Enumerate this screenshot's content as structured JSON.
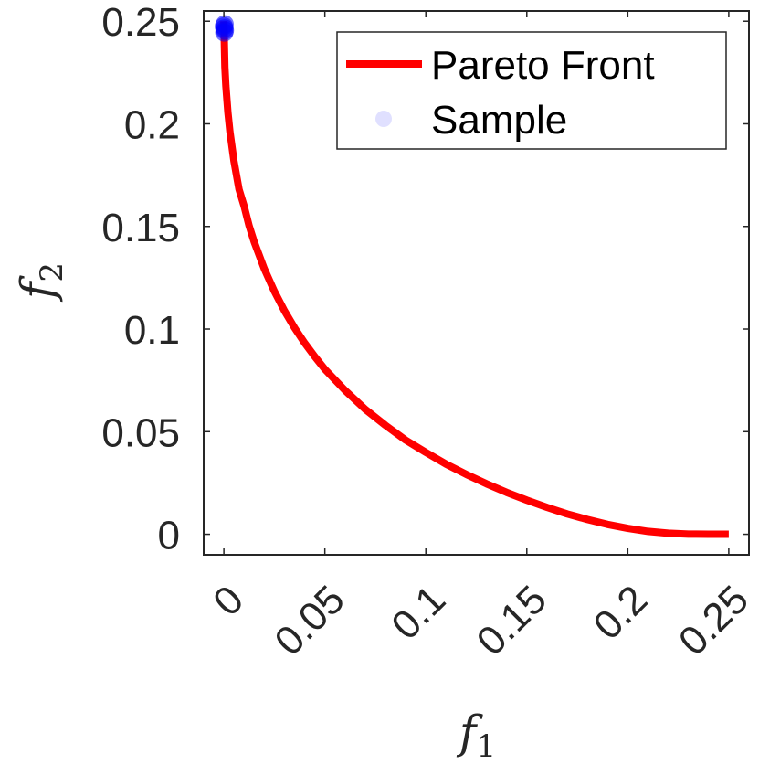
{
  "chart_data": {
    "type": "line",
    "title": "",
    "xlabel": "f",
    "xlabel_sub": "1",
    "ylabel": "f",
    "ylabel_sub": "2",
    "xlim": [
      -0.01,
      0.26
    ],
    "ylim": [
      -0.01,
      0.255
    ],
    "x_ticks": [
      0,
      0.05,
      0.1,
      0.15,
      0.2,
      0.25
    ],
    "x_tick_labels": [
      "0",
      "0.05",
      "0.1",
      "0.15",
      "0.2",
      "0.25"
    ],
    "y_ticks": [
      0,
      0.05,
      0.1,
      0.15,
      0.2,
      0.25
    ],
    "y_tick_labels": [
      "0",
      "0.05",
      "0.1",
      "0.15",
      "0.2",
      "0.25"
    ],
    "grid": false,
    "legend_position": "top-right",
    "series": [
      {
        "name": "Pareto Front",
        "type": "line",
        "color": "#ff0000",
        "x": [
          0,
          0.0005,
          0.001,
          0.002,
          0.003,
          0.005,
          0.0075,
          0.01,
          0.0125,
          0.015,
          0.02,
          0.025,
          0.03,
          0.035,
          0.04,
          0.045,
          0.05,
          0.06,
          0.07,
          0.08,
          0.09,
          0.1,
          0.11,
          0.12,
          0.13,
          0.14,
          0.15,
          0.16,
          0.17,
          0.18,
          0.19,
          0.2,
          0.21,
          0.22,
          0.23,
          0.24,
          0.25
        ],
        "y": [
          0.25,
          0.2276,
          0.2184,
          0.2056,
          0.1961,
          0.1818,
          0.1681,
          0.16,
          0.1503,
          0.1425,
          0.1294,
          0.1184,
          0.1089,
          0.1006,
          0.0932,
          0.0866,
          0.0804,
          0.0701,
          0.0609,
          0.0531,
          0.0459,
          0.0399,
          0.0342,
          0.0292,
          0.0246,
          0.0204,
          0.0166,
          0.0131,
          0.0099,
          0.0072,
          0.0048,
          0.0029,
          0.0014,
          0.0005,
          0.0001,
          0.0,
          0.0
        ]
      },
      {
        "name": "Sample",
        "type": "scatter",
        "color": "#0000ff",
        "x": [
          0,
          0.0003,
          0.0005,
          0.0002,
          0.0004
        ],
        "y": [
          0.2475,
          0.2465,
          0.2455,
          0.2445,
          0.2485
        ]
      }
    ]
  }
}
